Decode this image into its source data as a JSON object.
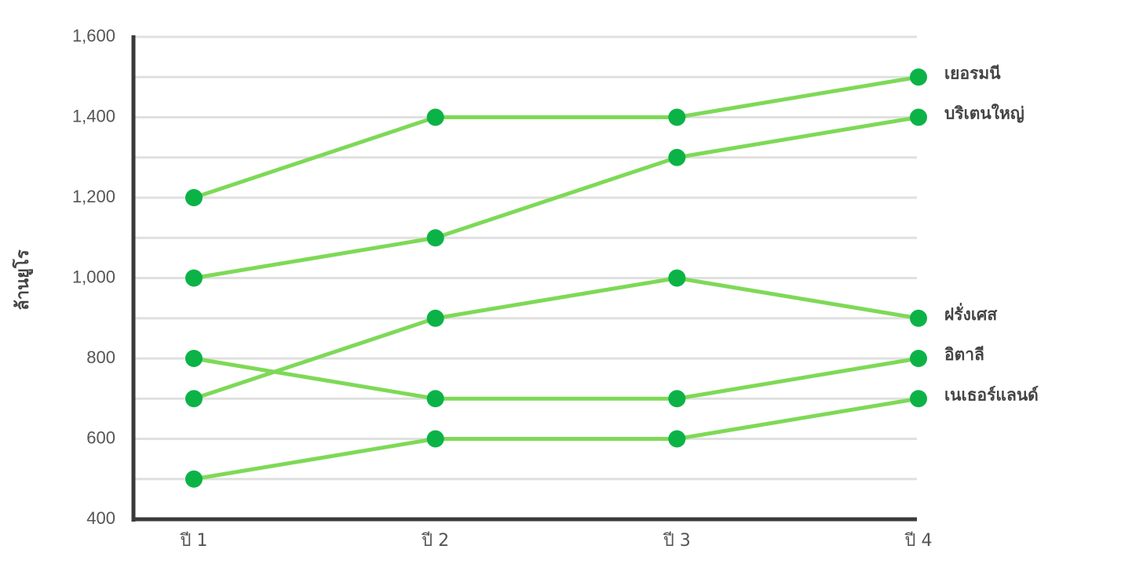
{
  "chart_data": {
    "type": "line",
    "y_label": "ล้านยูโร",
    "categories": [
      "ปี 1",
      "ปี 2",
      "ปี 3",
      "ปี 4"
    ],
    "series": [
      {
        "name": "เยอรมนี",
        "color": "#7ed957",
        "values": [
          1200,
          1400,
          1400,
          1500
        ]
      },
      {
        "name": "บริเตนใหญ่",
        "color": "#7ed957",
        "values": [
          1000,
          1100,
          1300,
          1400
        ]
      },
      {
        "name": "ฝรั่งเศส",
        "color": "#7ed957",
        "values": [
          700,
          900,
          1000,
          900
        ]
      },
      {
        "name": "อิตาลี",
        "color": "#7ed957",
        "values": [
          800,
          700,
          700,
          800
        ]
      },
      {
        "name": "เนเธอร์แลนด์",
        "color": "#7ed957",
        "values": [
          500,
          600,
          600,
          700
        ]
      }
    ],
    "marker_color": "#0bb347",
    "ylim": [
      400,
      1600
    ],
    "yticks": [
      400,
      600,
      800,
      {
        "value": 1000,
        "label": "1,000"
      },
      {
        "value": 1200,
        "label": "1,200"
      },
      {
        "value": 1400,
        "label": "1,400"
      },
      {
        "value": 1600,
        "label": "1,600"
      }
    ],
    "y_minor_ticks": [
      500,
      700,
      900,
      1100,
      1300,
      1500
    ],
    "grid": true
  }
}
